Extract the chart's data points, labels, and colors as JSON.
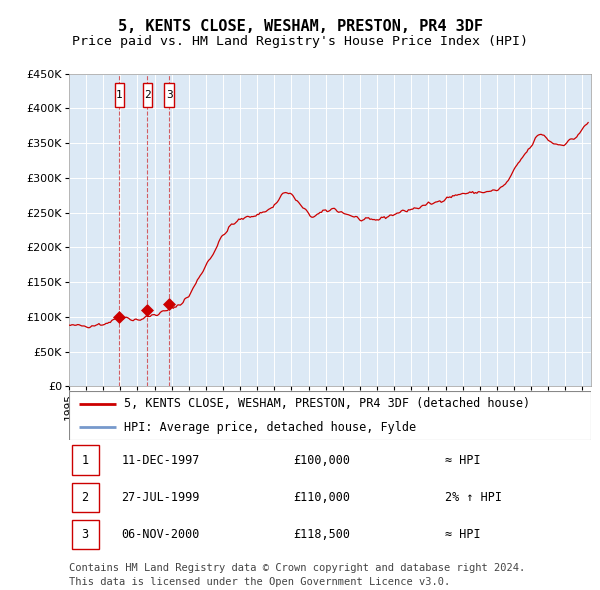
{
  "title1": "5, KENTS CLOSE, WESHAM, PRESTON, PR4 3DF",
  "title2": "Price paid vs. HM Land Registry's House Price Index (HPI)",
  "plot_bg_color": "#dce9f5",
  "line_color": "#cc0000",
  "hpi_line_color": "#7799cc",
  "grid_color": "#ffffff",
  "ylim": [
    0,
    450000
  ],
  "yticks": [
    0,
    50000,
    100000,
    150000,
    200000,
    250000,
    300000,
    350000,
    400000,
    450000
  ],
  "xlim_start": 1995.0,
  "xlim_end": 2025.5,
  "transactions": [
    {
      "num": 1,
      "date_label": "11-DEC-1997",
      "date_x": 1997.94,
      "price": 100000,
      "price_str": "£100,000",
      "hpi_note": "≈ HPI"
    },
    {
      "num": 2,
      "date_label": "27-JUL-1999",
      "date_x": 1999.57,
      "price": 110000,
      "price_str": "£110,000",
      "hpi_note": "2% ↑ HPI"
    },
    {
      "num": 3,
      "date_label": "06-NOV-2000",
      "date_x": 2000.85,
      "price": 118500,
      "price_str": "£118,500",
      "hpi_note": "≈ HPI"
    }
  ],
  "legend_line1": "5, KENTS CLOSE, WESHAM, PRESTON, PR4 3DF (detached house)",
  "legend_line2": "HPI: Average price, detached house, Fylde",
  "footer1": "Contains HM Land Registry data © Crown copyright and database right 2024.",
  "footer2": "This data is licensed under the Open Government Licence v3.0.",
  "title_fontsize": 11,
  "subtitle_fontsize": 9.5,
  "tick_fontsize": 8,
  "legend_fontsize": 8.5,
  "table_fontsize": 8.5,
  "footer_fontsize": 7.5,
  "anchors_x": [
    1995.0,
    1996.0,
    1997.0,
    1997.5,
    1997.94,
    1998.3,
    1998.7,
    1999.0,
    1999.4,
    1999.57,
    1999.8,
    2000.0,
    2000.5,
    2000.85,
    2001.2,
    2001.5,
    2002.0,
    2002.5,
    2003.0,
    2003.5,
    2004.0,
    2004.5,
    2005.0,
    2005.5,
    2006.0,
    2006.5,
    2007.0,
    2007.3,
    2007.6,
    2008.0,
    2008.3,
    2008.6,
    2009.0,
    2009.3,
    2009.6,
    2010.0,
    2010.5,
    2011.0,
    2011.5,
    2012.0,
    2012.5,
    2013.0,
    2013.5,
    2014.0,
    2014.5,
    2015.0,
    2015.5,
    2016.0,
    2016.5,
    2017.0,
    2017.5,
    2018.0,
    2018.5,
    2019.0,
    2019.5,
    2020.0,
    2020.5,
    2021.0,
    2021.5,
    2022.0,
    2022.3,
    2022.6,
    2023.0,
    2023.3,
    2023.6,
    2024.0,
    2024.3,
    2024.6,
    2025.0,
    2025.3
  ],
  "anchors_y": [
    87000,
    87500,
    90000,
    94000,
    100000,
    99000,
    97000,
    96000,
    98000,
    100000,
    102000,
    103000,
    107000,
    110000,
    115000,
    118500,
    130000,
    152000,
    175000,
    195000,
    218000,
    232000,
    240000,
    244000,
    248000,
    252000,
    260000,
    272000,
    280000,
    276000,
    268000,
    258000,
    248000,
    244000,
    248000,
    252000,
    256000,
    250000,
    246000,
    240000,
    238000,
    240000,
    244000,
    248000,
    252000,
    255000,
    258000,
    262000,
    265000,
    272000,
    274000,
    278000,
    278000,
    280000,
    280000,
    282000,
    290000,
    310000,
    330000,
    345000,
    358000,
    365000,
    355000,
    350000,
    348000,
    350000,
    354000,
    358000,
    370000,
    378000
  ]
}
